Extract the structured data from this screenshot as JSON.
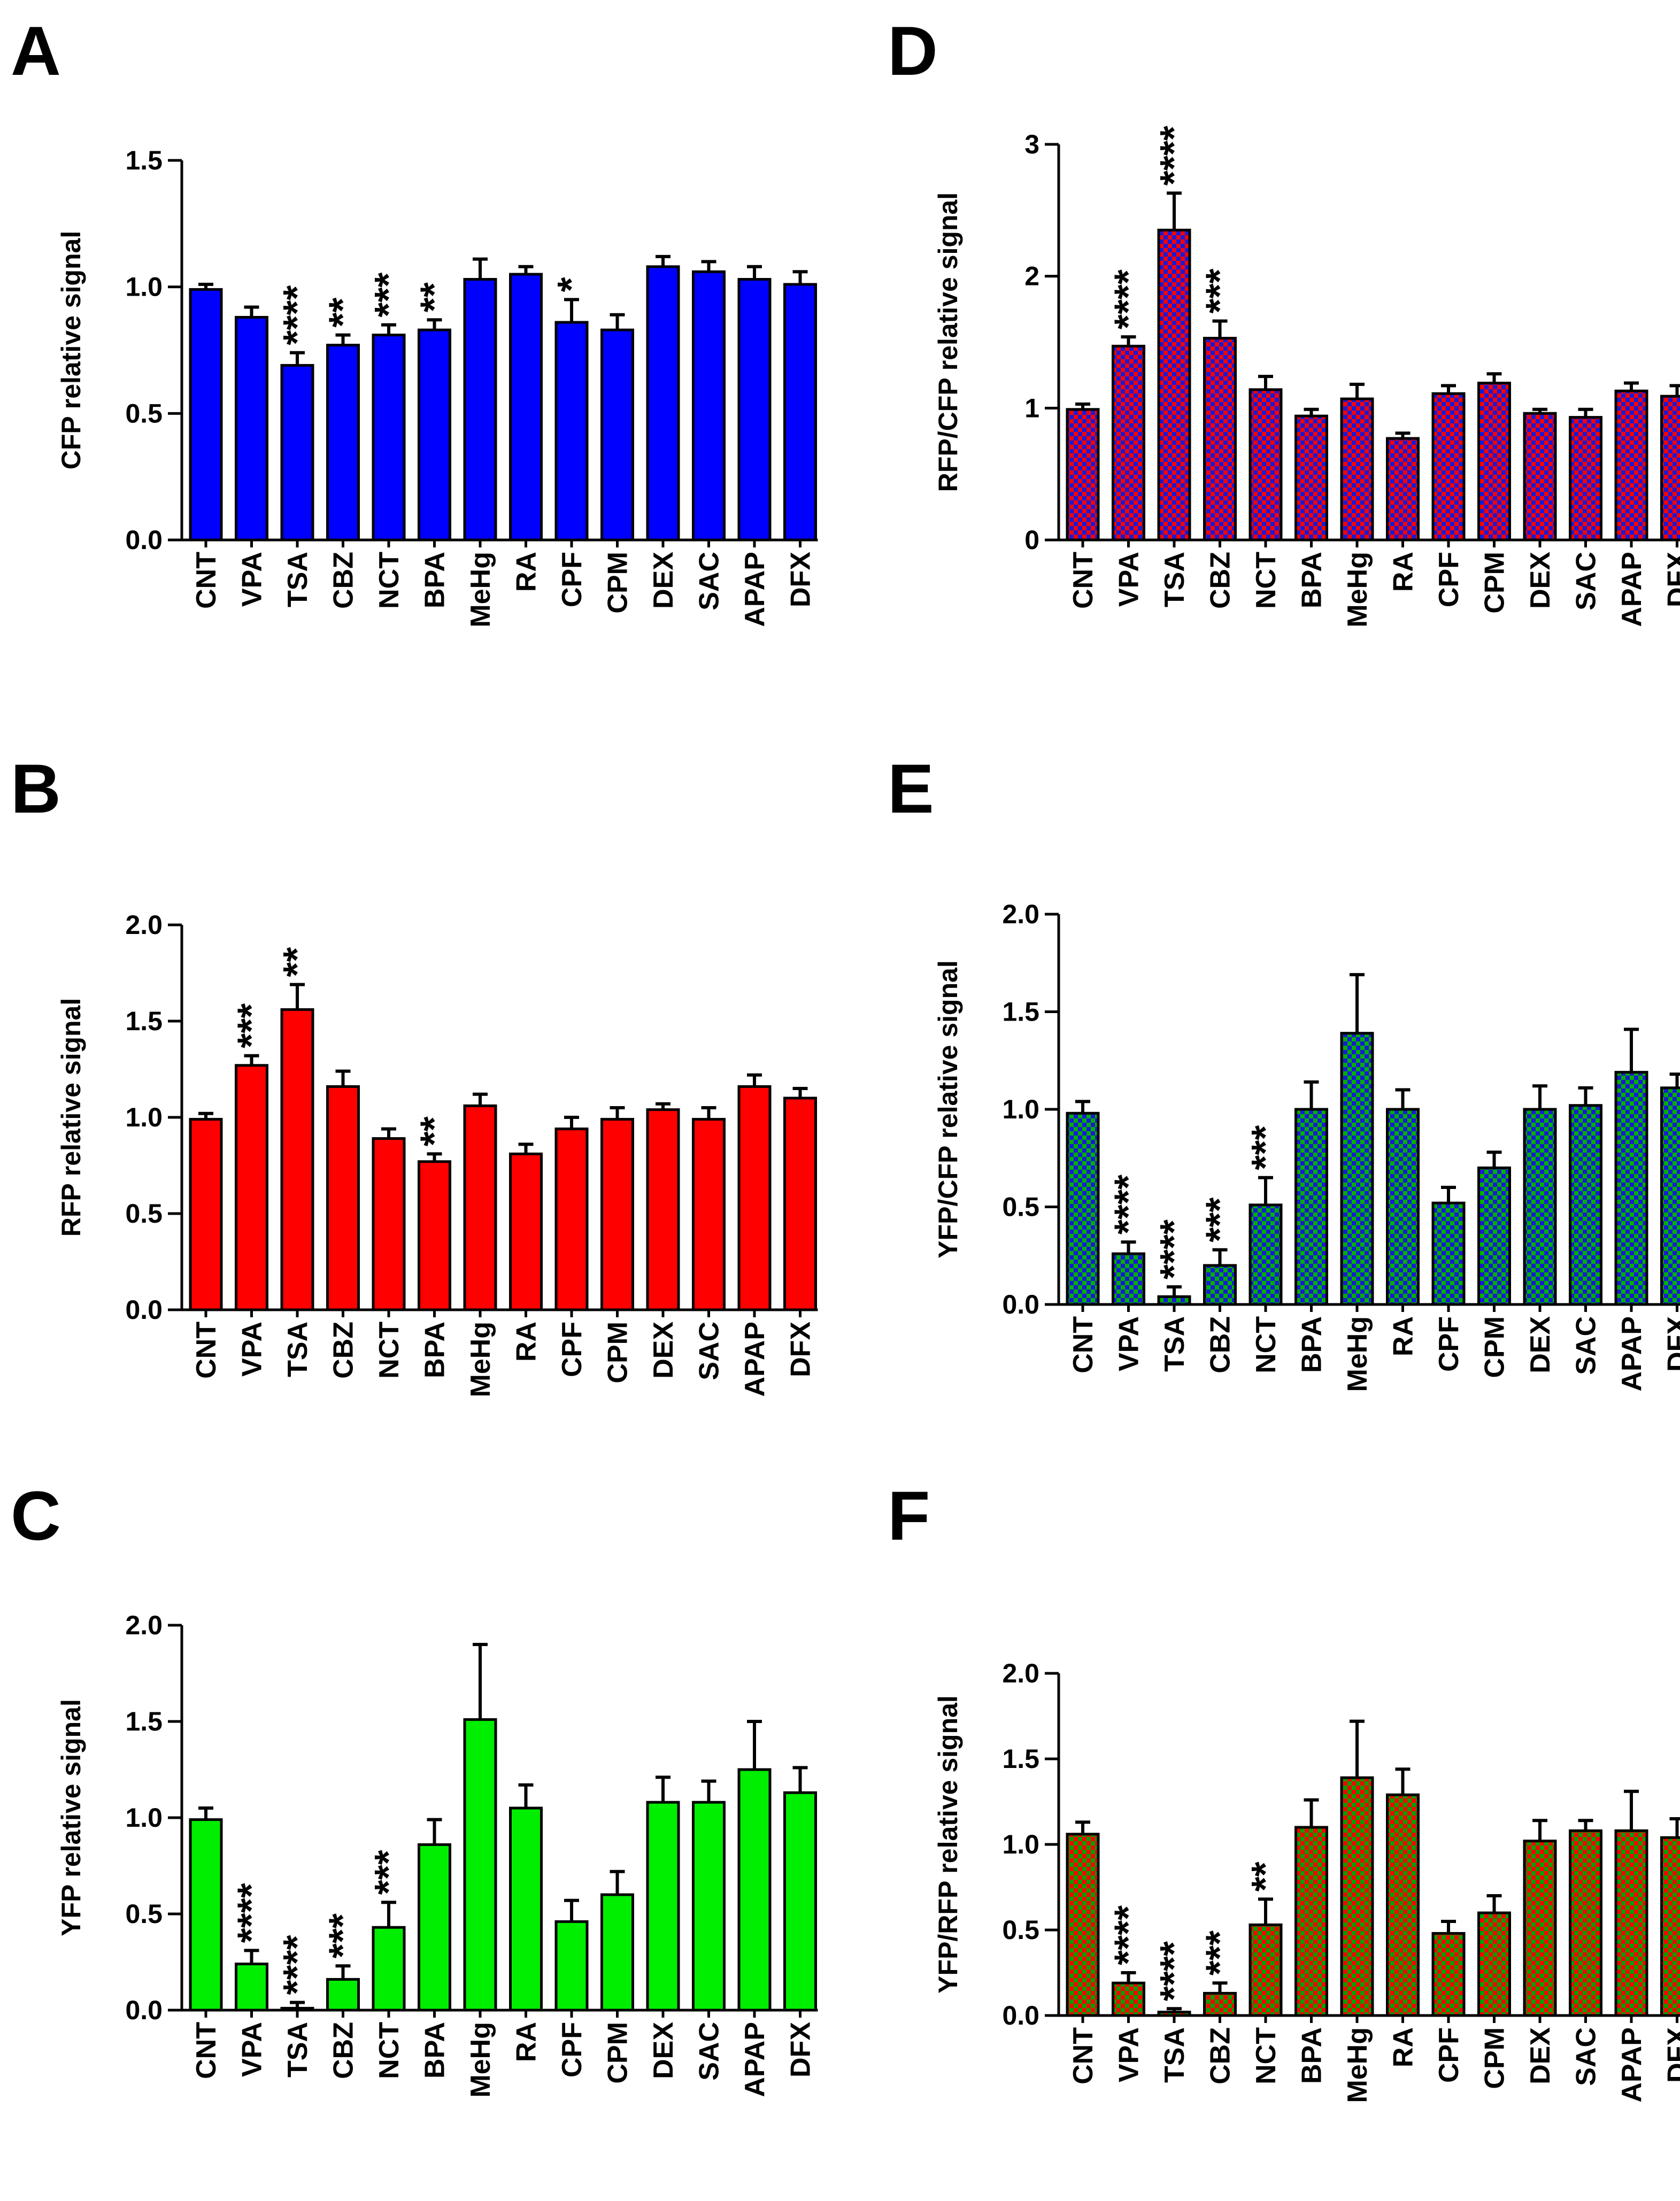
{
  "chart_data": [
    {
      "type": "bar",
      "label": "A",
      "categories": [
        "CNT",
        "VPA",
        "TSA",
        "CBZ",
        "NCT",
        "BPA",
        "MeHg",
        "RA",
        "CPF",
        "CPM",
        "DEX",
        "SAC",
        "APAP",
        "DFX"
      ],
      "values": [
        0.99,
        0.88,
        0.69,
        0.77,
        0.81,
        0.83,
        1.03,
        1.05,
        0.86,
        0.83,
        1.08,
        1.06,
        1.03,
        1.01
      ],
      "errors": [
        0.02,
        0.04,
        0.05,
        0.04,
        0.04,
        0.04,
        0.08,
        0.03,
        0.09,
        0.06,
        0.04,
        0.04,
        0.05,
        0.05
      ],
      "significance": [
        "",
        "",
        "****",
        "**",
        "***",
        "**",
        "",
        "",
        "*",
        "",
        "",
        "",
        "",
        ""
      ],
      "ylabel": "CFP relative signal",
      "ylim": [
        0,
        1.5
      ],
      "yticks": [
        0.0,
        0.5,
        1.0,
        1.5
      ],
      "ytick_labels": [
        "0.0",
        "0.5",
        "1.0",
        "1.5"
      ],
      "fill": "solid",
      "color": "#0000ff"
    },
    {
      "type": "bar",
      "label": "D",
      "categories": [
        "CNT",
        "VPA",
        "TSA",
        "CBZ",
        "NCT",
        "BPA",
        "MeHg",
        "RA",
        "CPF",
        "CPM",
        "DEX",
        "SAC",
        "APAP",
        "DFX"
      ],
      "values": [
        0.99,
        1.47,
        2.35,
        1.53,
        1.14,
        0.94,
        1.07,
        0.77,
        1.11,
        1.19,
        0.96,
        0.93,
        1.13,
        1.09
      ],
      "errors": [
        0.04,
        0.07,
        0.28,
        0.13,
        0.1,
        0.05,
        0.11,
        0.04,
        0.06,
        0.07,
        0.03,
        0.06,
        0.06,
        0.08
      ],
      "significance": [
        "",
        "****",
        "****",
        "***",
        "",
        "",
        "",
        "",
        "",
        "",
        "",
        "",
        "",
        ""
      ],
      "ylabel": "RFP/CFP relative signal",
      "ylim": [
        0,
        3
      ],
      "yticks": [
        0,
        1,
        2,
        3
      ],
      "ytick_labels": [
        "0",
        "1",
        "2",
        "3"
      ],
      "fill": "checker",
      "color": "#ff0000",
      "color2": "#1a1ad6"
    },
    {
      "type": "bar",
      "label": "B",
      "categories": [
        "CNT",
        "VPA",
        "TSA",
        "CBZ",
        "NCT",
        "BPA",
        "MeHg",
        "RA",
        "CPF",
        "CPM",
        "DEX",
        "SAC",
        "APAP",
        "DFX"
      ],
      "values": [
        0.99,
        1.27,
        1.56,
        1.16,
        0.89,
        0.77,
        1.06,
        0.81,
        0.94,
        0.99,
        1.04,
        0.99,
        1.16,
        1.1
      ],
      "errors": [
        0.03,
        0.05,
        0.13,
        0.08,
        0.05,
        0.04,
        0.06,
        0.05,
        0.06,
        0.06,
        0.03,
        0.06,
        0.06,
        0.05
      ],
      "significance": [
        "",
        "***",
        "**",
        "",
        "",
        "**",
        "",
        "",
        "",
        "",
        "",
        "",
        "",
        ""
      ],
      "ylabel": "RFP relative signal",
      "ylim": [
        0,
        2.0
      ],
      "yticks": [
        0.0,
        0.5,
        1.0,
        1.5,
        2.0
      ],
      "ytick_labels": [
        "0.0",
        "0.5",
        "1.0",
        "1.5",
        "2.0"
      ],
      "fill": "solid",
      "color": "#ff0000"
    },
    {
      "type": "bar",
      "label": "E",
      "categories": [
        "CNT",
        "VPA",
        "TSA",
        "CBZ",
        "NCT",
        "BPA",
        "MeHg",
        "RA",
        "CPF",
        "CPM",
        "DEX",
        "SAC",
        "APAP",
        "DFX"
      ],
      "values": [
        0.98,
        0.26,
        0.04,
        0.2,
        0.51,
        1.0,
        1.39,
        1.0,
        0.52,
        0.7,
        1.0,
        1.02,
        1.19,
        1.11
      ],
      "errors": [
        0.06,
        0.06,
        0.05,
        0.08,
        0.14,
        0.14,
        0.3,
        0.1,
        0.08,
        0.08,
        0.12,
        0.09,
        0.22,
        0.07
      ],
      "significance": [
        "",
        "****",
        "****",
        "***",
        "***",
        "",
        "",
        "",
        "",
        "",
        "",
        "",
        "",
        ""
      ],
      "ylabel": "YFP/CFP relative signal",
      "ylim": [
        0,
        2.0
      ],
      "yticks": [
        0.0,
        0.5,
        1.0,
        1.5,
        2.0
      ],
      "ytick_labels": [
        "0.0",
        "0.5",
        "1.0",
        "1.5",
        "2.0"
      ],
      "fill": "checker",
      "color": "#00b000",
      "color2": "#1a1ad6"
    },
    {
      "type": "bar",
      "label": "C",
      "categories": [
        "CNT",
        "VPA",
        "TSA",
        "CBZ",
        "NCT",
        "BPA",
        "MeHg",
        "RA",
        "CPF",
        "CPM",
        "DEX",
        "SAC",
        "APAP",
        "DFX"
      ],
      "values": [
        0.99,
        0.24,
        0.01,
        0.16,
        0.43,
        0.86,
        1.51,
        1.05,
        0.46,
        0.6,
        1.08,
        1.08,
        1.25,
        1.13
      ],
      "errors": [
        0.06,
        0.07,
        0.03,
        0.07,
        0.13,
        0.13,
        0.39,
        0.12,
        0.11,
        0.12,
        0.13,
        0.11,
        0.25,
        0.13
      ],
      "significance": [
        "",
        "****",
        "****",
        "***",
        "***",
        "",
        "",
        "",
        "",
        "",
        "",
        "",
        "",
        ""
      ],
      "ylabel": "YFP relative signal",
      "ylim": [
        0,
        2.0
      ],
      "yticks": [
        0.0,
        0.5,
        1.0,
        1.5,
        2.0
      ],
      "ytick_labels": [
        "0.0",
        "0.5",
        "1.0",
        "1.5",
        "2.0"
      ],
      "fill": "solid",
      "color": "#00ee00"
    },
    {
      "type": "bar",
      "label": "F",
      "categories": [
        "CNT",
        "VPA",
        "TSA",
        "CBZ",
        "NCT",
        "BPA",
        "MeHg",
        "RA",
        "CPF",
        "CPM",
        "DEX",
        "SAC",
        "APAP",
        "DFX"
      ],
      "values": [
        1.06,
        0.19,
        0.02,
        0.13,
        0.53,
        1.1,
        1.39,
        1.29,
        0.48,
        0.6,
        1.02,
        1.08,
        1.08,
        1.04
      ],
      "errors": [
        0.07,
        0.06,
        0.02,
        0.06,
        0.15,
        0.16,
        0.33,
        0.15,
        0.07,
        0.1,
        0.12,
        0.06,
        0.23,
        0.11
      ],
      "significance": [
        "",
        "****",
        "****",
        "***",
        "**",
        "",
        "",
        "",
        "",
        "",
        "",
        "",
        "",
        ""
      ],
      "ylabel": "YFP/RFP relative signal",
      "ylim": [
        0,
        2.0
      ],
      "yticks": [
        0.0,
        0.5,
        1.0,
        1.5,
        2.0
      ],
      "ytick_labels": [
        "0.0",
        "0.5",
        "1.0",
        "1.5",
        "2.0"
      ],
      "fill": "checker",
      "color": "#ff0000",
      "color2": "#00a000"
    }
  ]
}
